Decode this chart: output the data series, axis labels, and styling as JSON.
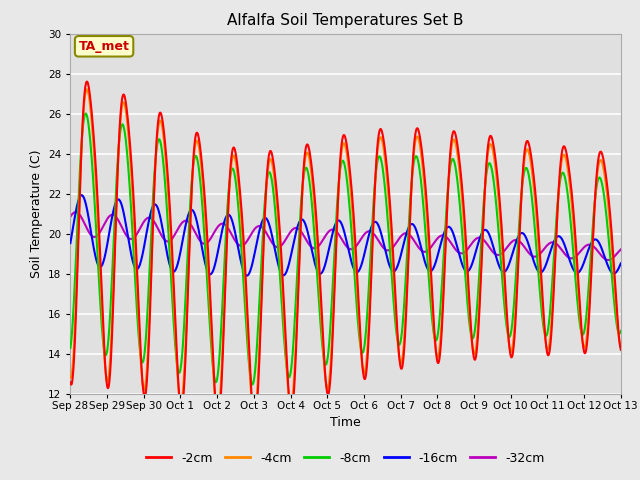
{
  "title": "Alfalfa Soil Temperatures Set B",
  "xlabel": "Time",
  "ylabel": "Soil Temperature (C)",
  "ylim": [
    12,
    30
  ],
  "fig_bg": "#e8e8e8",
  "plot_bg": "#e0e0e0",
  "annotation_label": "TA_met",
  "annotation_color": "#cc0000",
  "annotation_bg": "#ffffcc",
  "annotation_border": "#888800",
  "x_tick_labels": [
    "Sep 28",
    "Sep 29",
    "Sep 30",
    "Oct 1",
    "Oct 2",
    "Oct 3",
    "Oct 4",
    "Oct 5",
    "Oct 6",
    "Oct 7",
    "Oct 8",
    "Oct 9",
    "Oct 10",
    "Oct 11",
    "Oct 12",
    "Oct 13"
  ],
  "series_colors": {
    "-2cm": "#ff0000",
    "-4cm": "#ff8800",
    "-8cm": "#00cc00",
    "-16cm": "#0000ff",
    "-32cm": "#bb00bb"
  }
}
